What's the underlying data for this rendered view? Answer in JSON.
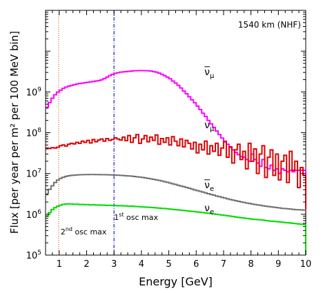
{
  "chart_data": {
    "type": "line",
    "step": true,
    "annotation": "1540 km (NHF)",
    "xlabel": "Energy [GeV]",
    "ylabel": "Flux [per year per m² per 100 MeV bin]",
    "xlim": [
      0.5,
      10
    ],
    "ylim": [
      100000,
      100000000000
    ],
    "yscale": "log",
    "x_ticks": [
      1,
      2,
      3,
      4,
      5,
      6,
      7,
      8,
      9,
      10
    ],
    "y_ticks": [
      {
        "value": 100000,
        "mantissa": "10",
        "exp": "5"
      },
      {
        "value": 1000000,
        "mantissa": "10",
        "exp": "6"
      },
      {
        "value": 10000000,
        "mantissa": "10",
        "exp": "7"
      },
      {
        "value": 100000000,
        "mantissa": "10",
        "exp": "8"
      },
      {
        "value": 1000000000,
        "mantissa": "10",
        "exp": "9"
      }
    ],
    "vlines": [
      {
        "x": 0.98,
        "color": "#e05a1a",
        "dash": "1,2",
        "label_main": "2",
        "label_sup": "nd",
        "label_rest": " osc max",
        "label_x": 1.05,
        "label_y": 320000
      },
      {
        "x": 3.0,
        "color": "#1a1ad6",
        "dash": "5,2,1,2",
        "label_main": "1",
        "label_sup": "st",
        "label_rest": " osc max",
        "label_x": 3.0,
        "label_y": 730000
      }
    ],
    "series": [
      {
        "name": "ν̄μ",
        "base": "ν",
        "bar": true,
        "sub": "μ",
        "color": "#ff00ff",
        "label_x": 6.3,
        "label_y": 2600000000,
        "x": [
          0.5,
          0.6,
          0.7,
          0.8,
          0.9,
          1.0,
          1.1,
          1.2,
          1.3,
          1.4,
          1.5,
          1.6,
          1.7,
          1.8,
          1.9,
          2.0,
          2.1,
          2.2,
          2.3,
          2.4,
          2.5,
          2.6,
          2.7,
          2.8,
          2.9,
          3.0,
          3.1,
          3.2,
          3.3,
          3.4,
          3.5,
          3.6,
          3.7,
          3.8,
          3.9,
          4.0,
          4.1,
          4.2,
          4.3,
          4.4,
          4.5,
          4.6,
          4.7,
          4.8,
          4.9,
          5.0,
          5.1,
          5.2,
          5.3,
          5.4,
          5.5,
          5.6,
          5.7,
          5.8,
          5.9,
          6.0,
          6.1,
          6.2,
          6.3,
          6.4,
          6.5,
          6.6,
          6.7,
          6.8,
          6.9,
          7.0,
          7.1,
          7.2,
          7.3,
          7.4,
          7.5,
          7.6,
          7.7,
          7.8,
          7.9,
          8.0,
          8.1,
          8.2,
          8.3,
          8.4,
          8.5,
          8.6,
          8.7,
          8.8,
          8.9,
          9.0,
          9.1,
          9.2,
          9.3,
          9.4,
          9.5,
          9.6,
          9.7,
          9.8,
          9.9
        ],
        "values": [
          420000000,
          550000000,
          700000000,
          850000000,
          990000000,
          1100000000,
          1220000000,
          1310000000,
          1380000000,
          1440000000,
          1500000000,
          1560000000,
          1600000000,
          1640000000,
          1680000000,
          1720000000,
          1760000000,
          1800000000,
          1850000000,
          1900000000,
          1980000000,
          2120000000,
          2300000000,
          2520000000,
          2700000000,
          2850000000,
          2950000000,
          3050000000,
          3100000000,
          3150000000,
          3200000000,
          3250000000,
          3300000000,
          3320000000,
          3330000000,
          3330000000,
          3320000000,
          3300000000,
          3250000000,
          3150000000,
          3050000000,
          2900000000,
          2700000000,
          2500000000,
          2300000000,
          2100000000,
          1850000000,
          1650000000,
          1450000000,
          1250000000,
          1050000000,
          900000000,
          760000000,
          640000000,
          540000000,
          450000000,
          370000000,
          300000000,
          250000000,
          200000000,
          165000000,
          135000000,
          110000000,
          90000000,
          74000000,
          62000000,
          52000000,
          44000000,
          38000000,
          33000000,
          29000000,
          26000000,
          25000000,
          22000000,
          20000000,
          30000000,
          22000000,
          18000000,
          15000000,
          22000000,
          14000000,
          13000000,
          16000000,
          12000000,
          13000000,
          10000000,
          13000000,
          12000000,
          11000000,
          12000000,
          11000000,
          12000000,
          12000000,
          12000000,
          12000000
        ]
      },
      {
        "name": "νμ",
        "base": "ν",
        "bar": false,
        "sub": "μ",
        "color": "#dd0000",
        "label_x": 6.3,
        "label_y": 130000000,
        "x": [
          0.5,
          0.6,
          0.7,
          0.8,
          0.9,
          1.0,
          1.1,
          1.2,
          1.3,
          1.4,
          1.5,
          1.6,
          1.7,
          1.8,
          1.9,
          2.0,
          2.1,
          2.2,
          2.3,
          2.4,
          2.5,
          2.6,
          2.7,
          2.8,
          2.9,
          3.0,
          3.1,
          3.2,
          3.3,
          3.4,
          3.5,
          3.6,
          3.7,
          3.8,
          3.9,
          4.0,
          4.1,
          4.2,
          4.3,
          4.4,
          4.5,
          4.6,
          4.7,
          4.8,
          4.9,
          5.0,
          5.1,
          5.2,
          5.3,
          5.4,
          5.5,
          5.6,
          5.7,
          5.8,
          5.9,
          6.0,
          6.1,
          6.2,
          6.3,
          6.4,
          6.5,
          6.6,
          6.7,
          6.8,
          6.9,
          7.0,
          7.1,
          7.2,
          7.3,
          7.4,
          7.5,
          7.6,
          7.7,
          7.8,
          7.9,
          8.0,
          8.1,
          8.2,
          8.3,
          8.4,
          8.5,
          8.6,
          8.7,
          8.8,
          8.9,
          9.0,
          9.1,
          9.2,
          9.3,
          9.4,
          9.5,
          9.6,
          9.7,
          9.8,
          9.9
        ],
        "values": [
          42000000,
          41000000,
          43000000,
          42000000,
          44000000,
          48000000,
          50000000,
          47000000,
          52000000,
          55000000,
          53000000,
          58000000,
          55000000,
          62000000,
          58000000,
          65000000,
          56000000,
          68000000,
          60000000,
          66000000,
          70000000,
          62000000,
          72000000,
          65000000,
          68000000,
          75000000,
          70000000,
          66000000,
          78000000,
          64000000,
          85000000,
          58000000,
          75000000,
          90000000,
          55000000,
          70000000,
          85000000,
          60000000,
          78000000,
          65000000,
          88000000,
          52000000,
          72000000,
          58000000,
          75000000,
          50000000,
          80000000,
          62000000,
          48000000,
          70000000,
          45000000,
          65000000,
          55000000,
          40000000,
          58000000,
          32000000,
          52000000,
          38000000,
          62000000,
          30000000,
          48000000,
          35000000,
          55000000,
          28000000,
          42000000,
          60000000,
          25000000,
          45000000,
          18000000,
          38000000,
          52000000,
          22000000,
          35000000,
          13000000,
          55000000,
          20000000,
          40000000,
          10000000,
          30000000,
          48000000,
          8000000,
          25000000,
          38000000,
          9000000,
          30000000,
          7000000,
          20000000,
          28000000,
          6000000,
          35000000,
          12000000,
          20000000,
          4500000,
          14000000,
          9000000
        ]
      },
      {
        "name": "ν̄e",
        "base": "ν",
        "bar": true,
        "sub": "e",
        "color": "#707070",
        "label_x": 6.3,
        "label_y": 4400000,
        "x": [
          0.5,
          0.6,
          0.7,
          0.8,
          0.9,
          1.0,
          1.1,
          1.2,
          1.3,
          1.4,
          1.5,
          1.6,
          1.7,
          1.8,
          1.9,
          2.0,
          2.1,
          2.2,
          2.3,
          2.4,
          2.5,
          2.6,
          2.7,
          2.8,
          2.9,
          3.0,
          3.1,
          3.2,
          3.3,
          3.4,
          3.5,
          3.6,
          3.7,
          3.8,
          3.9,
          4.0,
          4.1,
          4.2,
          4.3,
          4.4,
          4.5,
          4.6,
          4.7,
          4.8,
          4.9,
          5.0,
          5.1,
          5.2,
          5.3,
          5.4,
          5.5,
          5.6,
          5.7,
          5.8,
          5.9,
          6.0,
          6.1,
          6.2,
          6.3,
          6.4,
          6.5,
          6.6,
          6.7,
          6.8,
          6.9,
          7.0,
          7.1,
          7.2,
          7.3,
          7.4,
          7.5,
          7.6,
          7.7,
          7.8,
          7.9,
          8.0,
          8.1,
          8.2,
          8.3,
          8.4,
          8.5,
          8.6,
          8.7,
          8.8,
          8.9,
          9.0,
          9.1,
          9.2,
          9.3,
          9.4,
          9.5,
          9.6,
          9.7,
          9.8,
          9.9
        ],
        "values": [
          3200000,
          4100000,
          5000000,
          6000000,
          6900000,
          7600000,
          8100000,
          8500000,
          8800000,
          9000000,
          9100000,
          9200000,
          9300000,
          9350000,
          9400000,
          9400000,
          9450000,
          9450000,
          9400000,
          9400000,
          9350000,
          9350000,
          9300000,
          9250000,
          9200000,
          9150000,
          9100000,
          9000000,
          8900000,
          8800000,
          8700000,
          8600000,
          8450000,
          8300000,
          8150000,
          8000000,
          7800000,
          7600000,
          7400000,
          7200000,
          7000000,
          6800000,
          6550000,
          6300000,
          6100000,
          5850000,
          5600000,
          5400000,
          5150000,
          4950000,
          4750000,
          4550000,
          4350000,
          4150000,
          3950000,
          3800000,
          3650000,
          3500000,
          3350000,
          3200000,
          3050000,
          2950000,
          2800000,
          2700000,
          2600000,
          2500000,
          2400000,
          2300000,
          2230000,
          2150000,
          2080000,
          2010000,
          1950000,
          1890000,
          1840000,
          1790000,
          1740000,
          1700000,
          1660000,
          1620000,
          1580000,
          1550000,
          1520000,
          1490000,
          1460000,
          1430000,
          1400000,
          1380000,
          1360000,
          1340000,
          1320000,
          1300000,
          1290000,
          1280000,
          1270000
        ]
      },
      {
        "name": "νe",
        "base": "ν",
        "bar": false,
        "sub": "e",
        "color": "#00dd00",
        "label_x": 6.3,
        "label_y": 1180000,
        "x": [
          0.5,
          0.6,
          0.7,
          0.8,
          0.9,
          1.0,
          1.1,
          1.2,
          1.3,
          1.4,
          1.5,
          1.6,
          1.7,
          1.8,
          1.9,
          2.0,
          2.1,
          2.2,
          2.3,
          2.4,
          2.5,
          2.6,
          2.7,
          2.8,
          2.9,
          3.0,
          3.1,
          3.2,
          3.3,
          3.4,
          3.5,
          3.6,
          3.7,
          3.8,
          3.9,
          4.0,
          4.1,
          4.2,
          4.3,
          4.4,
          4.5,
          4.6,
          4.7,
          4.8,
          4.9,
          5.0,
          5.1,
          5.2,
          5.3,
          5.4,
          5.5,
          5.6,
          5.7,
          5.8,
          5.9,
          6.0,
          6.1,
          6.2,
          6.3,
          6.4,
          6.5,
          6.6,
          6.7,
          6.8,
          6.9,
          7.0,
          7.1,
          7.2,
          7.3,
          7.4,
          7.5,
          7.6,
          7.7,
          7.8,
          7.9,
          8.0,
          8.1,
          8.2,
          8.3,
          8.4,
          8.5,
          8.6,
          8.7,
          8.8,
          8.9,
          9.0,
          9.1,
          9.2,
          9.3,
          9.4,
          9.5,
          9.6,
          9.7,
          9.8,
          9.9
        ],
        "values": [
          900000,
          1100000,
          1300000,
          1450000,
          1580000,
          1680000,
          1750000,
          1780000,
          1800000,
          1790000,
          1760000,
          1770000,
          1730000,
          1750000,
          1720000,
          1730000,
          1700000,
          1710000,
          1690000,
          1700000,
          1670000,
          1680000,
          1650000,
          1660000,
          1640000,
          1650000,
          1620000,
          1630000,
          1610000,
          1600000,
          1580000,
          1590000,
          1560000,
          1550000,
          1530000,
          1520000,
          1500000,
          1490000,
          1470000,
          1460000,
          1440000,
          1420000,
          1400000,
          1390000,
          1360000,
          1340000,
          1320000,
          1300000,
          1280000,
          1260000,
          1240000,
          1220000,
          1200000,
          1180000,
          1160000,
          1140000,
          1120000,
          1100000,
          1080000,
          1060000,
          1040000,
          1020000,
          1000000,
          980000,
          960000,
          940000,
          920000,
          900000,
          880000,
          860000,
          840000,
          820000,
          810000,
          790000,
          780000,
          760000,
          750000,
          740000,
          730000,
          720000,
          700000,
          690000,
          680000,
          670000,
          660000,
          650000,
          640000,
          630000,
          620000,
          610000,
          600000,
          590000,
          580000,
          570000,
          560000
        ]
      }
    ]
  }
}
